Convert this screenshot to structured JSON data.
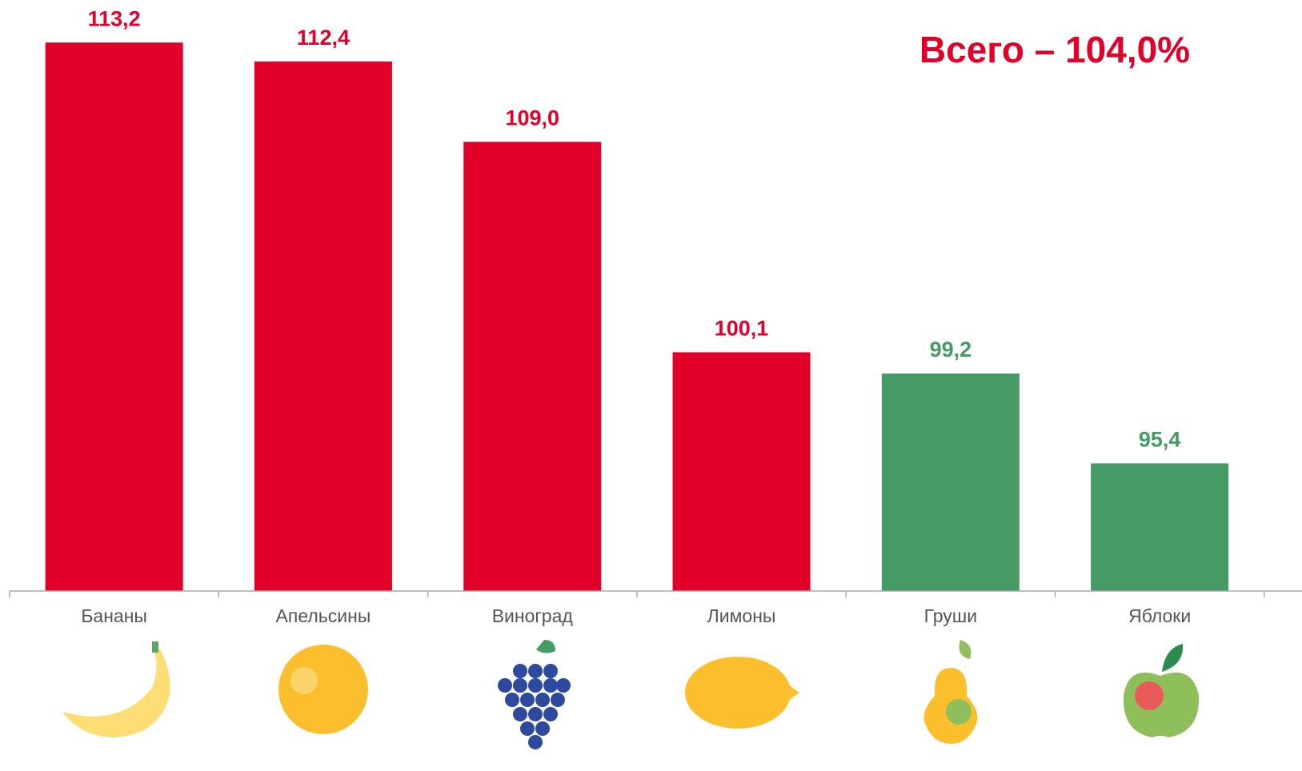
{
  "chart_data": {
    "type": "bar",
    "title": "Всего – 104,0%",
    "categories": [
      "Бананы",
      "Апельсины",
      "Виноград",
      "Лимоны",
      "Груши",
      "Яблоки"
    ],
    "values": [
      113.2,
      112.4,
      109.0,
      100.1,
      99.2,
      95.4
    ],
    "value_labels": [
      "113,2",
      "112,4",
      "109,0",
      "100,1",
      "99,2",
      "95,4"
    ],
    "colors": [
      "#e0002a",
      "#e0002a",
      "#e0002a",
      "#e0002a",
      "#469a66",
      "#469a66"
    ],
    "ylim": [
      90,
      115
    ]
  }
}
